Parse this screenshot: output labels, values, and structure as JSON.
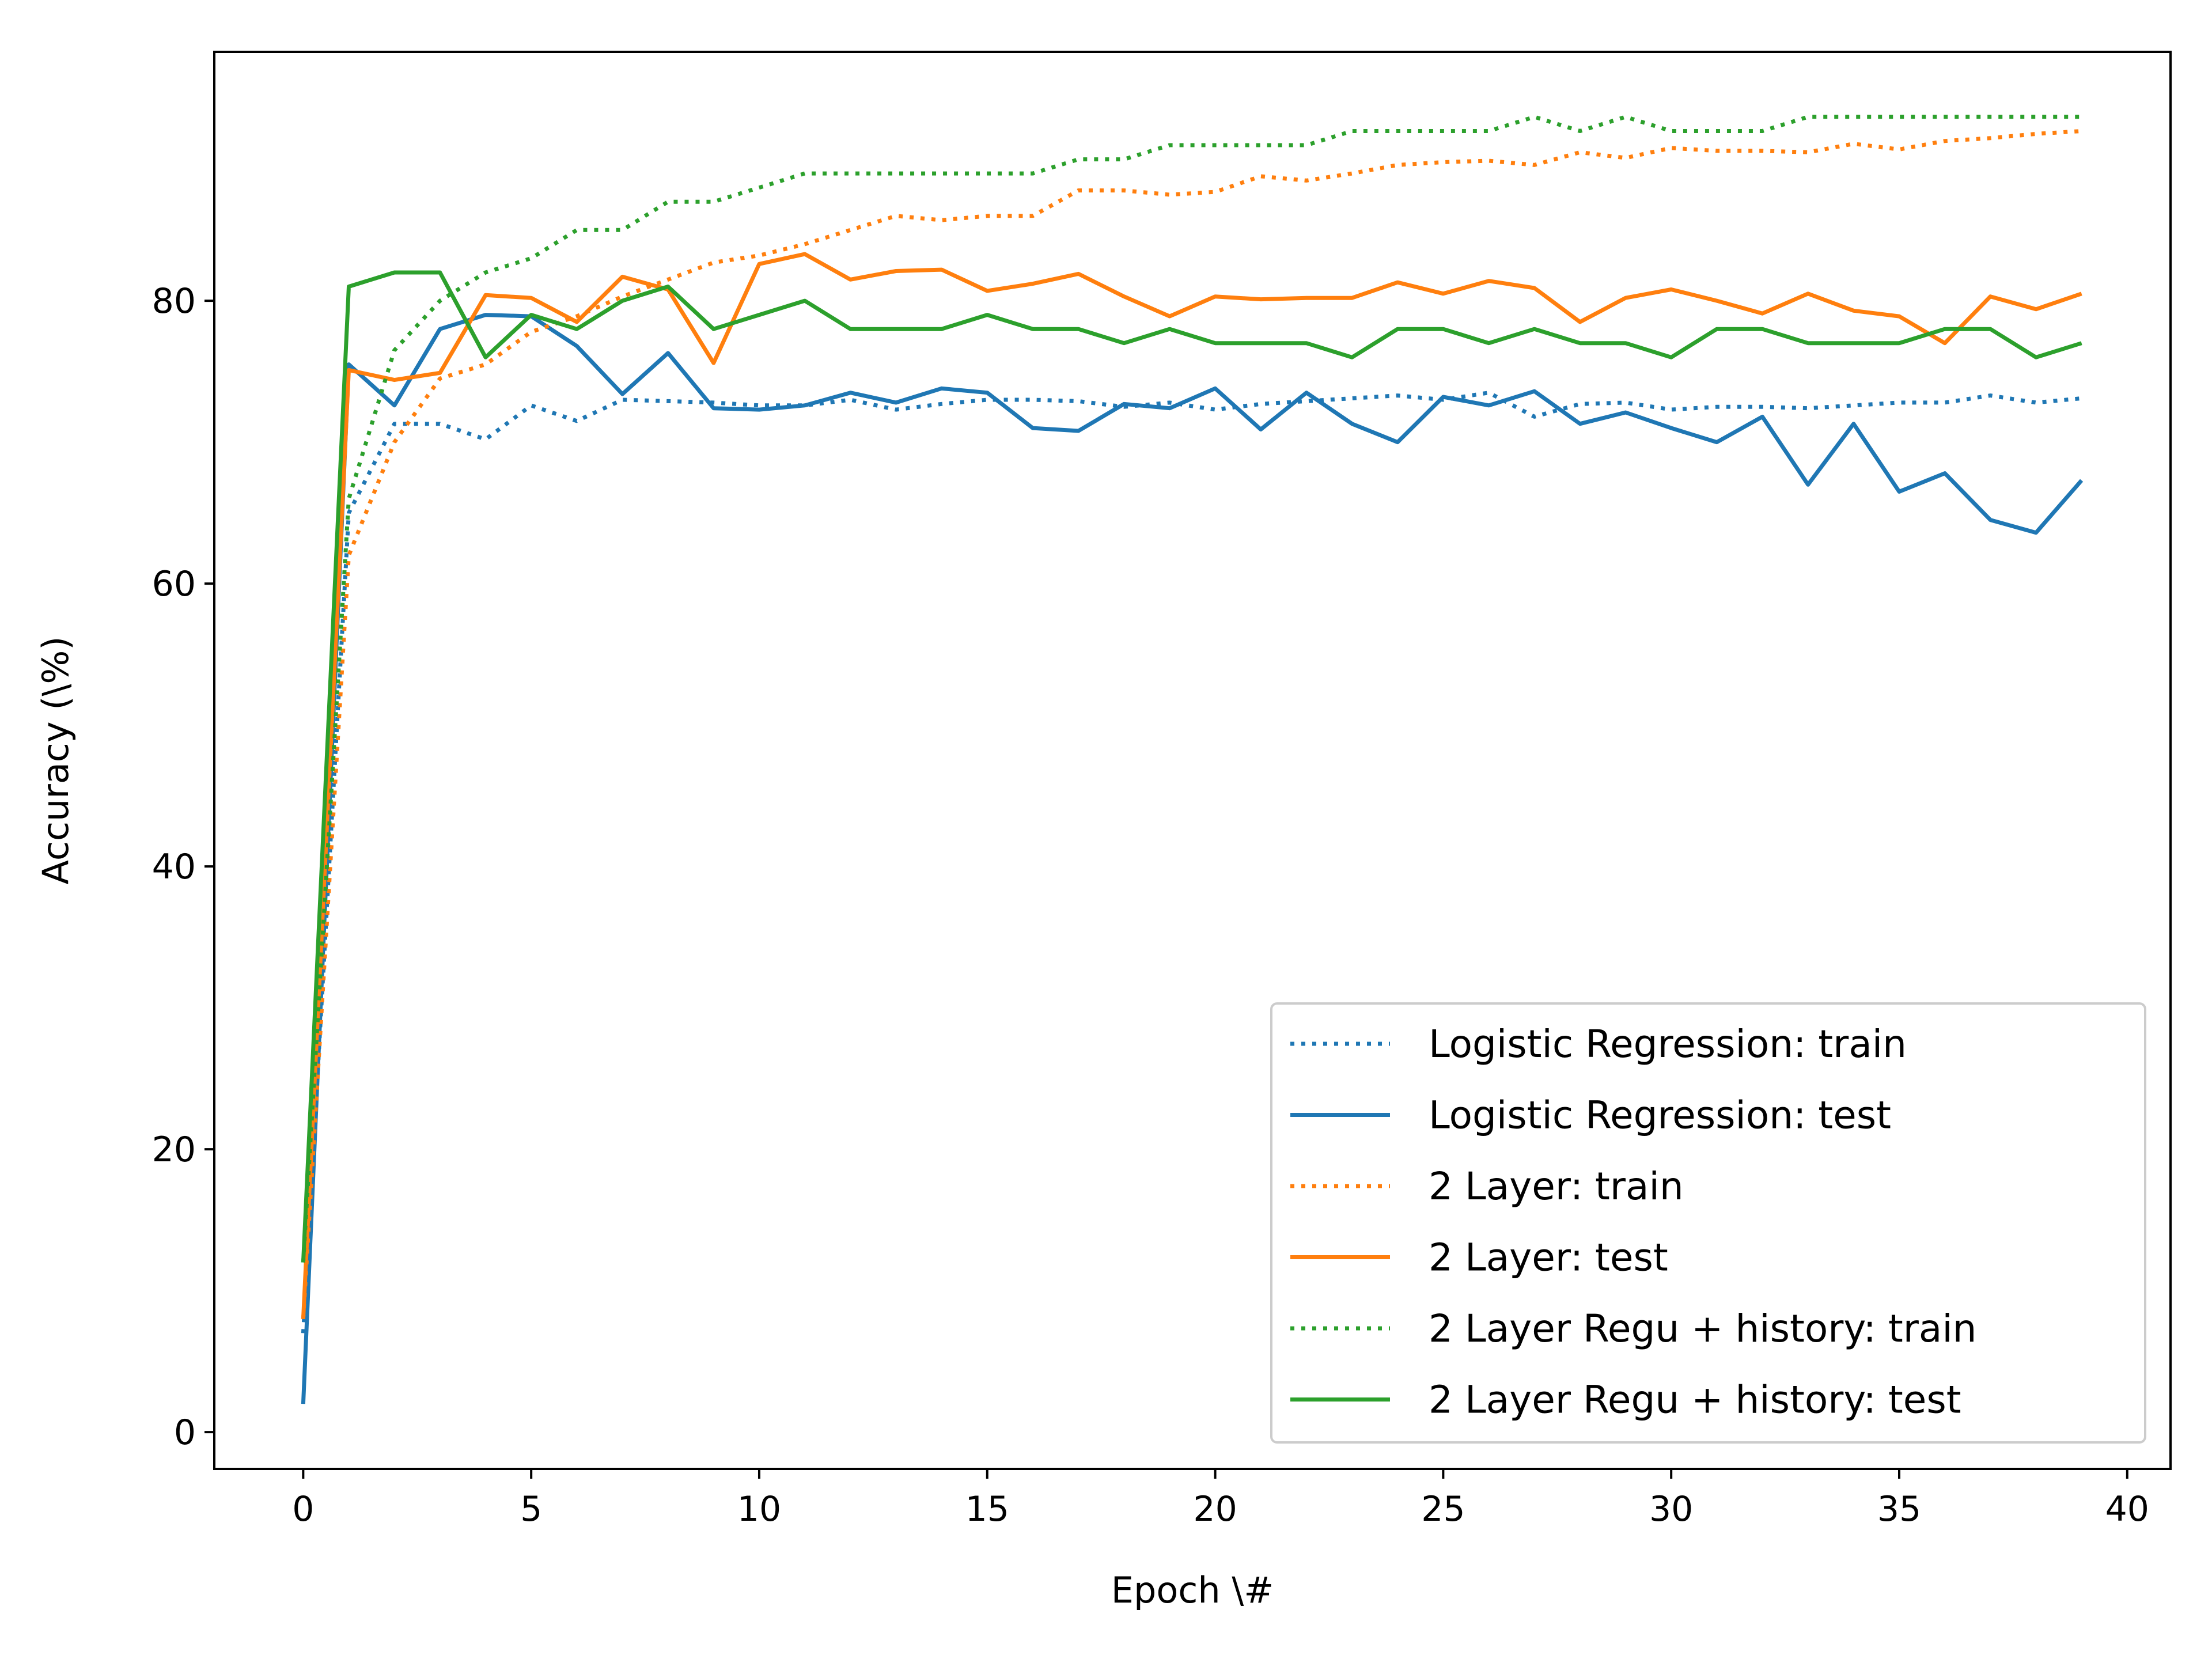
{
  "chart_data": {
    "type": "line",
    "xlabel": "Epoch \\#",
    "ylabel": "Accuracy (\\%)",
    "xlim": [
      -1.95,
      40.95
    ],
    "ylim": [
      -2.6,
      97.6
    ],
    "xticks": [
      0,
      5,
      10,
      15,
      20,
      25,
      30,
      35,
      40
    ],
    "yticks": [
      0,
      20,
      40,
      60,
      80
    ],
    "grid": false,
    "legend_position": "lower-right",
    "x": [
      0,
      1,
      2,
      3,
      4,
      5,
      6,
      7,
      8,
      9,
      10,
      11,
      12,
      13,
      14,
      15,
      16,
      17,
      18,
      19,
      20,
      21,
      22,
      23,
      24,
      25,
      26,
      27,
      28,
      29,
      30,
      31,
      32,
      33,
      34,
      35,
      36,
      37,
      38,
      39
    ],
    "series": [
      {
        "name": "Logistic Regression: train",
        "color": "#1f77b4",
        "style": "dotted",
        "values": [
          7,
          65,
          71.3,
          71.3,
          70.2,
          72.6,
          71.5,
          73,
          72.9,
          72.8,
          72.6,
          72.6,
          73,
          72.3,
          72.7,
          73,
          73,
          72.9,
          72.5,
          72.8,
          72.3,
          72.7,
          72.9,
          73.1,
          73.3,
          73,
          73.5,
          71.8,
          72.7,
          72.8,
          72.3,
          72.5,
          72.5,
          72.4,
          72.6,
          72.8,
          72.8,
          73.3,
          72.8,
          73.1
        ]
      },
      {
        "name": "Logistic Regression: test",
        "color": "#1f77b4",
        "style": "solid",
        "values": [
          2,
          75.5,
          72.6,
          78,
          79,
          78.9,
          76.8,
          73.4,
          76.3,
          72.4,
          72.3,
          72.6,
          73.5,
          72.8,
          73.8,
          73.5,
          71,
          70.8,
          72.7,
          72.4,
          73.8,
          70.9,
          73.5,
          71.3,
          70,
          73.2,
          72.6,
          73.6,
          71.3,
          72.1,
          71,
          70,
          71.8,
          67,
          71.3,
          66.5,
          67.8,
          64.5,
          63.6,
          67.3
        ]
      },
      {
        "name": "2 Layer: train",
        "color": "#ff7f0e",
        "style": "dotted",
        "values": [
          8,
          62,
          70,
          74.5,
          75.5,
          77.8,
          78.9,
          80.3,
          81.5,
          82.7,
          83.2,
          84,
          85,
          86,
          85.7,
          86,
          86,
          87.8,
          87.8,
          87.5,
          87.7,
          88.8,
          88.5,
          89,
          89.6,
          89.8,
          89.9,
          89.6,
          90.5,
          90.1,
          90.8,
          90.6,
          90.6,
          90.5,
          91.1,
          90.7,
          91.3,
          91.5,
          91.8,
          92
        ]
      },
      {
        "name": "2 Layer: test",
        "color": "#ff7f0e",
        "style": "solid",
        "values": [
          8,
          75.1,
          74.4,
          74.9,
          80.4,
          80.2,
          78.5,
          81.7,
          80.8,
          75.6,
          82.6,
          83.3,
          81.5,
          82.1,
          82.2,
          80.7,
          81.2,
          81.9,
          80.3,
          78.9,
          80.3,
          80.1,
          80.2,
          80.2,
          81.3,
          80.5,
          81.4,
          80.9,
          78.5,
          80.2,
          80.8,
          80,
          79.1,
          80.5,
          79.3,
          78.9,
          77,
          80.3,
          79.4,
          80.5
        ]
      },
      {
        "name": "2 Layer Regu + history: train",
        "color": "#2ca02c",
        "style": "dotted",
        "values": [
          12,
          66,
          76.5,
          80,
          82,
          83,
          85,
          85,
          87,
          87,
          88,
          89,
          89,
          89,
          89,
          89,
          89,
          90,
          90,
          91,
          91,
          91,
          91,
          92,
          92,
          92,
          92,
          93,
          92,
          93,
          92,
          92,
          92,
          93,
          93,
          93,
          93,
          93,
          93,
          93
        ]
      },
      {
        "name": "2 Layer Regu + history: test",
        "color": "#2ca02c",
        "style": "solid",
        "values": [
          12,
          81,
          82,
          82,
          76,
          79,
          78,
          80,
          81,
          78,
          79,
          80,
          78,
          78,
          78,
          79,
          78,
          78,
          77,
          78,
          77,
          77,
          77,
          76,
          78,
          78,
          77,
          78,
          77,
          77,
          76,
          78,
          78,
          77,
          77,
          77,
          78,
          78,
          76,
          77
        ]
      }
    ]
  }
}
